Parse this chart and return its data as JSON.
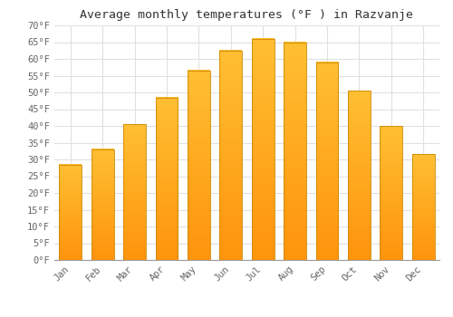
{
  "title": "Average monthly temperatures (°F ) in Razvanje",
  "months": [
    "Jan",
    "Feb",
    "Mar",
    "Apr",
    "May",
    "Jun",
    "Jul",
    "Aug",
    "Sep",
    "Oct",
    "Nov",
    "Dec"
  ],
  "values": [
    28.5,
    33.0,
    40.5,
    48.5,
    56.5,
    62.5,
    66.0,
    65.0,
    59.0,
    50.5,
    40.0,
    31.5
  ],
  "bar_color_top": "#FFB833",
  "bar_color_bottom": "#FF9500",
  "bar_edge_color": "#CC8800",
  "background_color": "#FFFFFF",
  "grid_color": "#E0E0E0",
  "text_color": "#666666",
  "title_fontsize": 9.5,
  "tick_fontsize": 7.5,
  "ylim": [
    0,
    70
  ],
  "ytick_step": 5,
  "bar_width": 0.7
}
